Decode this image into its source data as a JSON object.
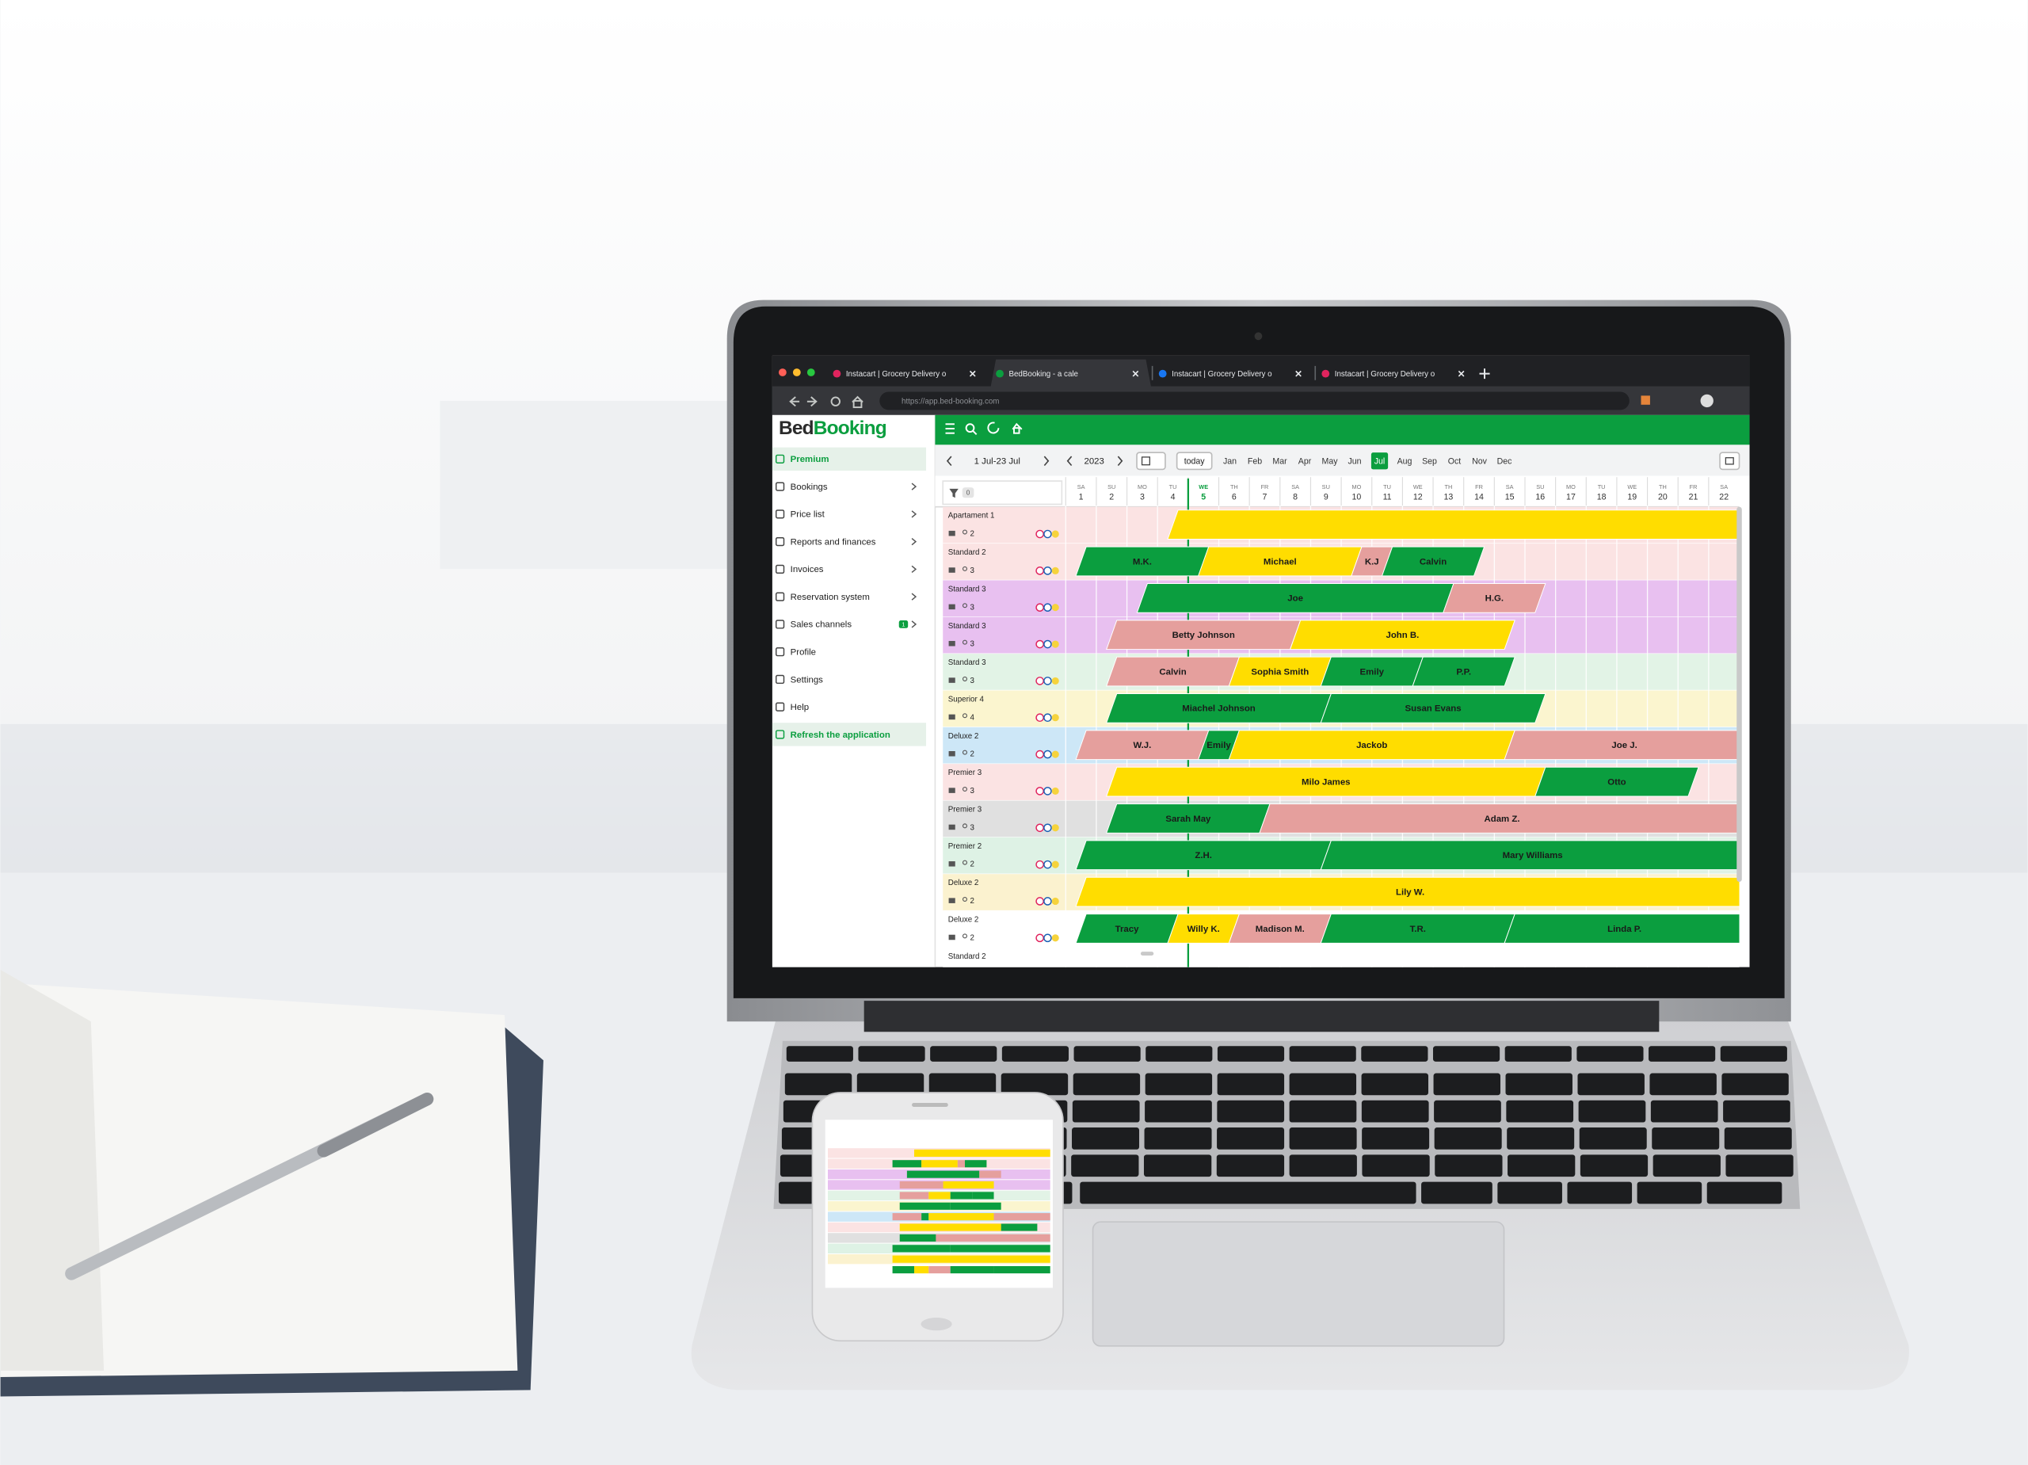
{
  "browser": {
    "tabs": [
      "Instacart | Grocery Delivery o",
      "BedBooking - a cale",
      "Instacart | Grocery Delivery o",
      "Instacart | Grocery Delivery o"
    ],
    "url": "https://app.bed-booking.com"
  },
  "sidebar": {
    "logo": [
      "Bed",
      "Booking"
    ],
    "items": [
      "Premium",
      "Bookings",
      "Price list",
      "Reports and finances",
      "Invoices",
      "Reservation system",
      "Sales channels",
      "Profile",
      "Settings",
      "Help",
      "Refresh the application"
    ],
    "badge": "1"
  },
  "toolbar": {
    "range": "1 Jul-23 Jul",
    "year": "2023",
    "today": "today",
    "months": [
      "Jan",
      "Feb",
      "Mar",
      "Apr",
      "May",
      "Jun",
      "Jul",
      "Aug",
      "Sep",
      "Oct",
      "Nov",
      "Dec"
    ],
    "active_month": "Jul"
  },
  "calendar": {
    "filter_count": "0",
    "today": 5,
    "days": [
      {
        "dow": "SA",
        "day": 1
      },
      {
        "dow": "SU",
        "day": 2
      },
      {
        "dow": "MO",
        "day": 3
      },
      {
        "dow": "TU",
        "day": 4
      },
      {
        "dow": "WE",
        "day": 5
      },
      {
        "dow": "TH",
        "day": 6
      },
      {
        "dow": "FR",
        "day": 7
      },
      {
        "dow": "SA",
        "day": 8
      },
      {
        "dow": "SU",
        "day": 9
      },
      {
        "dow": "MO",
        "day": 10
      },
      {
        "dow": "TU",
        "day": 11
      },
      {
        "dow": "WE",
        "day": 12
      },
      {
        "dow": "TH",
        "day": 13
      },
      {
        "dow": "FR",
        "day": 14
      },
      {
        "dow": "SA",
        "day": 15
      },
      {
        "dow": "SU",
        "day": 16
      },
      {
        "dow": "MO",
        "day": 17
      },
      {
        "dow": "TU",
        "day": 18
      },
      {
        "dow": "WE",
        "day": 19
      },
      {
        "dow": "TH",
        "day": 20
      },
      {
        "dow": "FR",
        "day": 21
      },
      {
        "dow": "SA",
        "day": 22
      }
    ],
    "rooms": [
      {
        "name": "Apartament 1",
        "guests": 2,
        "tint": "#fbe3e3",
        "bookings": [
          {
            "start": 4,
            "end": 23,
            "color": "#ffdd00"
          }
        ]
      },
      {
        "name": "Standard 2",
        "guests": 3,
        "tint": "#fbe3e3",
        "bookings": [
          {
            "guest": "M.K.",
            "start": 1,
            "end": 5,
            "color": "#0b9e3f"
          },
          {
            "guest": "Michael",
            "start": 5,
            "end": 10,
            "color": "#ffdd00"
          },
          {
            "guest": "K.J",
            "start": 10,
            "end": 11,
            "color": "#e59f9d"
          },
          {
            "guest": "Calvin",
            "start": 11,
            "end": 14,
            "color": "#0b9e3f"
          }
        ]
      },
      {
        "name": "Standard 3",
        "guests": 3,
        "tint": "#e8c0f0",
        "bookings": [
          {
            "guest": "Joe",
            "start": 3,
            "end": 13,
            "color": "#0b9e3f"
          },
          {
            "guest": "H.G.",
            "start": 13,
            "end": 16,
            "color": "#e59f9d"
          }
        ]
      },
      {
        "name": "Standard 3",
        "guests": 3,
        "tint": "#e8c0f0",
        "bookings": [
          {
            "guest": "Betty Johnson",
            "start": 2,
            "end": 8,
            "color": "#e59f9d"
          },
          {
            "guest": "John B.",
            "start": 8,
            "end": 15,
            "color": "#ffdd00"
          }
        ]
      },
      {
        "name": "Standard 3",
        "guests": 3,
        "tint": "#e2f3e6",
        "bookings": [
          {
            "guest": "Calvin",
            "start": 2,
            "end": 6,
            "color": "#e59f9d"
          },
          {
            "guest": "Sophia Smith",
            "start": 6,
            "end": 9,
            "color": "#ffdd00"
          },
          {
            "guest": "Emily",
            "start": 9,
            "end": 12,
            "color": "#0b9e3f"
          },
          {
            "guest": "P.P.",
            "start": 12,
            "end": 15,
            "color": "#0b9e3f"
          }
        ]
      },
      {
        "name": "Superior 4",
        "guests": 4,
        "tint": "#fbf5cf",
        "bookings": [
          {
            "guest": "Miachel Johnson",
            "start": 2,
            "end": 9,
            "color": "#0b9e3f"
          },
          {
            "guest": "Susan Evans",
            "start": 9,
            "end": 16,
            "color": "#0b9e3f"
          }
        ]
      },
      {
        "name": "Deluxe 2",
        "guests": 2,
        "tint": "#cde7f7",
        "bookings": [
          {
            "guest": "W.J.",
            "start": 1,
            "end": 5,
            "color": "#e59f9d"
          },
          {
            "guest": "Emily",
            "start": 5,
            "end": 6,
            "color": "#0b9e3f"
          },
          {
            "guest": "Jackob",
            "start": 6,
            "end": 15,
            "color": "#ffdd00"
          },
          {
            "guest": "Joe J.",
            "start": 15,
            "end": 23,
            "color": "#e59f9d"
          }
        ]
      },
      {
        "name": "Premier 3",
        "guests": 3,
        "tint": "#fbe3e3",
        "bookings": [
          {
            "guest": "Milo James",
            "start": 2,
            "end": 16,
            "color": "#ffdd00"
          },
          {
            "guest": "Otto",
            "start": 16,
            "end": 21,
            "color": "#0b9e3f"
          }
        ]
      },
      {
        "name": "Premier 3",
        "guests": 3,
        "tint": "#e0e0e0",
        "bookings": [
          {
            "guest": "Sarah May",
            "start": 2,
            "end": 7,
            "color": "#0b9e3f"
          },
          {
            "guest": "Adam Z.",
            "start": 7,
            "end": 23,
            "color": "#e59f9d"
          }
        ]
      },
      {
        "name": "Premier 2",
        "guests": 2,
        "tint": "#def2e5",
        "bookings": [
          {
            "guest": "Z.H.",
            "start": 1,
            "end": 9,
            "color": "#0b9e3f"
          },
          {
            "guest": "Mary Williams",
            "start": 9,
            "end": 23,
            "color": "#0b9e3f"
          }
        ]
      },
      {
        "name": "Deluxe 2",
        "guests": 2,
        "tint": "#fbf2cf",
        "bookings": [
          {
            "guest": "Lily W.",
            "start": 1,
            "end": 23,
            "color": "#ffdd00"
          }
        ]
      },
      {
        "name": "Deluxe 2",
        "guests": 2,
        "tint": "#ffffff",
        "bookings": [
          {
            "guest": "Tracy",
            "start": 1,
            "end": 4,
            "color": "#0b9e3f"
          },
          {
            "guest": "Willy K.",
            "start": 4,
            "end": 6,
            "color": "#ffdd00"
          },
          {
            "guest": "Madison M.",
            "start": 6,
            "end": 9,
            "color": "#e59f9d"
          },
          {
            "guest": "T.R.",
            "start": 9,
            "end": 15,
            "color": "#0b9e3f"
          },
          {
            "guest": "Linda P.",
            "start": 15,
            "end": 23,
            "color": "#0b9e3f"
          }
        ]
      },
      {
        "name": "Standard 2",
        "tint": "#ffffff",
        "bookings": []
      }
    ]
  }
}
